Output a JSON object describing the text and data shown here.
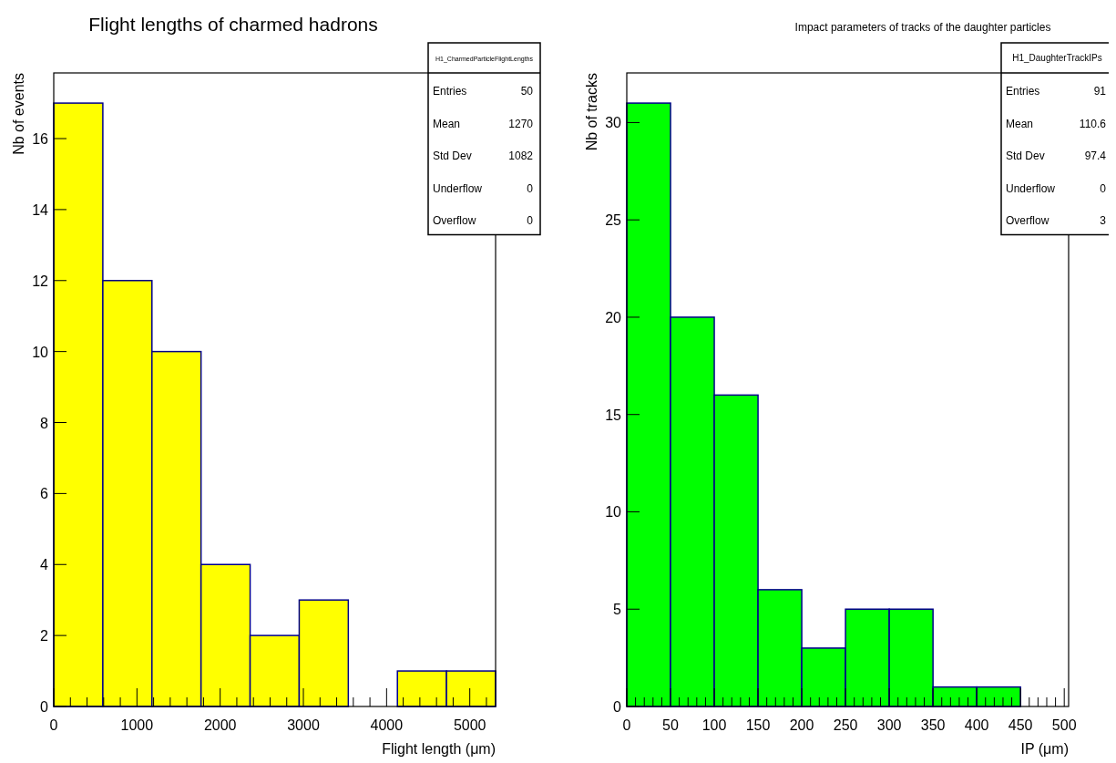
{
  "chart_data": [
    {
      "type": "histogram",
      "title": "Flight lengths of charmed hadrons",
      "xlabel": "Flight length (μm)",
      "ylabel": "Nb of events",
      "color": "#ffff00",
      "bins": [
        0,
        590,
        1180,
        1770,
        2360,
        2950,
        3540,
        4130,
        4720,
        5310
      ],
      "values": [
        17,
        12,
        10,
        4,
        2,
        3,
        0,
        1,
        1
      ],
      "xlim": [
        0,
        5310
      ],
      "ylim": [
        0,
        17.85
      ],
      "xticks": [
        0,
        {
          "value": 200,
          "label": null
        },
        {
          "value": 400,
          "label": null
        },
        {
          "value": 600,
          "label": null
        },
        {
          "value": 800,
          "label": null
        },
        1000,
        {
          "value": 1200,
          "label": null
        },
        {
          "value": 1400,
          "label": null
        },
        {
          "value": 1600,
          "label": null
        },
        {
          "value": 1800,
          "label": null
        },
        2000,
        {
          "value": 2200,
          "label": null
        },
        {
          "value": 2400,
          "label": null
        },
        {
          "value": 2600,
          "label": null
        },
        {
          "value": 2800,
          "label": null
        },
        3000,
        {
          "value": 3200,
          "label": null
        },
        {
          "value": 3400,
          "label": null
        },
        {
          "value": 3600,
          "label": null
        },
        {
          "value": 3800,
          "label": null
        },
        4000,
        {
          "value": 4200,
          "label": null
        },
        {
          "value": 4400,
          "label": null
        },
        {
          "value": 4600,
          "label": null
        },
        {
          "value": 4800,
          "label": null
        },
        5000,
        {
          "value": 5200,
          "label": null
        }
      ],
      "yticks": [
        0,
        2,
        4,
        6,
        8,
        10,
        12,
        14,
        16
      ],
      "annotations": [
        "H1_CharmedParticleFlightLengths",
        "Entries",
        "50",
        "Mean",
        "1270",
        "Std Dev",
        "1082",
        "Underflow",
        "0",
        "Overflow",
        "0"
      ]
    },
    {
      "type": "histogram",
      "title": "Impact parameters of tracks of the daughter particles",
      "xlabel": "IP (μm)",
      "ylabel": "Nb of tracks",
      "color": "#00ff00",
      "bins": [
        0,
        50,
        100,
        150,
        200,
        250,
        300,
        350,
        400,
        450,
        500
      ],
      "values": [
        31,
        20,
        16,
        6,
        3,
        5,
        5,
        1,
        1,
        0
      ],
      "xlim": [
        0,
        505
      ],
      "ylim": [
        0,
        32.55
      ],
      "xticks": [
        0,
        {
          "value": 10,
          "label": null
        },
        {
          "value": 20,
          "label": null
        },
        {
          "value": 30,
          "label": null
        },
        {
          "value": 40,
          "label": null
        },
        50,
        {
          "value": 60,
          "label": null
        },
        {
          "value": 70,
          "label": null
        },
        {
          "value": 80,
          "label": null
        },
        {
          "value": 90,
          "label": null
        },
        100,
        {
          "value": 110,
          "label": null
        },
        {
          "value": 120,
          "label": null
        },
        {
          "value": 130,
          "label": null
        },
        {
          "value": 140,
          "label": null
        },
        150,
        {
          "value": 160,
          "label": null
        },
        {
          "value": 170,
          "label": null
        },
        {
          "value": 180,
          "label": null
        },
        {
          "value": 190,
          "label": null
        },
        200,
        {
          "value": 210,
          "label": null
        },
        {
          "value": 220,
          "label": null
        },
        {
          "value": 230,
          "label": null
        },
        {
          "value": 240,
          "label": null
        },
        250,
        {
          "value": 260,
          "label": null
        },
        {
          "value": 270,
          "label": null
        },
        {
          "value": 280,
          "label": null
        },
        {
          "value": 290,
          "label": null
        },
        300,
        {
          "value": 310,
          "label": null
        },
        {
          "value": 320,
          "label": null
        },
        {
          "value": 330,
          "label": null
        },
        {
          "value": 340,
          "label": null
        },
        350,
        {
          "value": 360,
          "label": null
        },
        {
          "value": 370,
          "label": null
        },
        {
          "value": 380,
          "label": null
        },
        {
          "value": 390,
          "label": null
        },
        400,
        {
          "value": 410,
          "label": null
        },
        {
          "value": 420,
          "label": null
        },
        {
          "value": 430,
          "label": null
        },
        {
          "value": 440,
          "label": null
        },
        450,
        {
          "value": 460,
          "label": null
        },
        {
          "value": 470,
          "label": null
        },
        {
          "value": 480,
          "label": null
        },
        {
          "value": 490,
          "label": null
        },
        500
      ],
      "yticks": [
        0,
        5,
        10,
        15,
        20,
        25,
        30
      ],
      "annotations": [
        "H1_DaughterTrackIPs",
        "Entries",
        "91",
        "Mean",
        "110.6",
        "Std Dev",
        "97.4",
        "Underflow",
        "0",
        "Overflow",
        "3"
      ]
    }
  ]
}
